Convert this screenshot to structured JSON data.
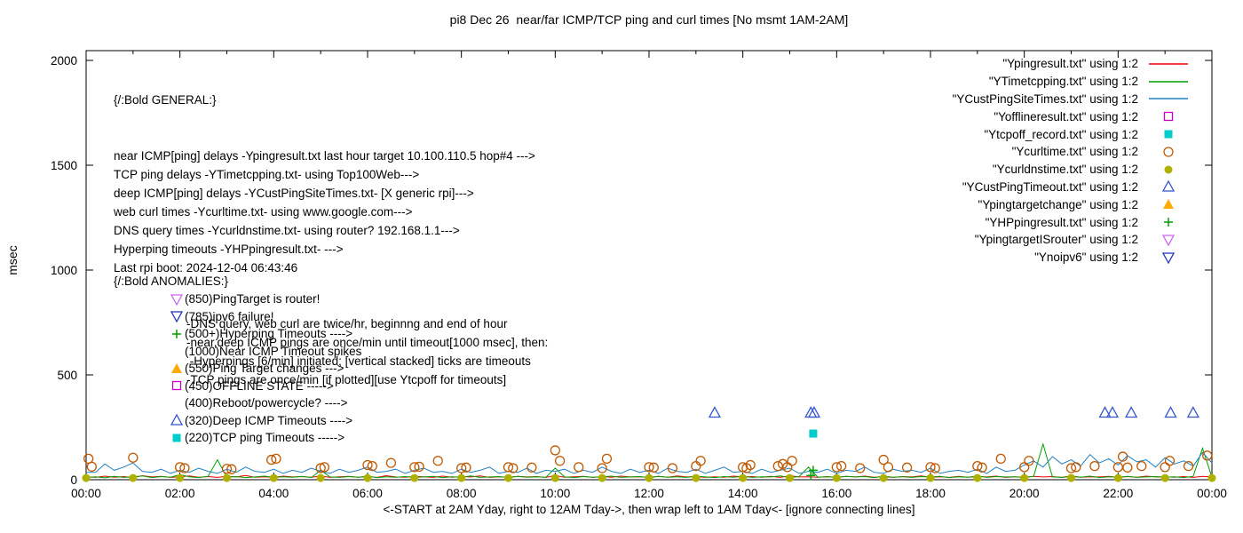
{
  "title": "pi8 Dec 26  near/far ICMP/TCP ping and curl times [No msmt 1AM-2AM]",
  "ylabel": "msec",
  "xlabel": "<-START at 2AM Yday, right to 12AM Tday->, then wrap left to 1AM Tday<- [ignore connecting lines]",
  "general_block": {
    "heading": "{/:Bold GENERAL:}",
    "lines": [
      "near ICMP[ping] delays -Ypingresult.txt last hour target 10.100.110.5 hop#4 --->",
      "TCP ping delays -YTimetcpping.txt- using Top100Web--->",
      "deep ICMP[ping] delays -YCustPingSiteTimes.txt- [X generic rpi]--->",
      "web curl times -Ycurltime.txt- using www.google.com--->",
      "DNS query times -Ycurldnstime.txt- using router? 192.168.1.1--->",
      "Hyperping timeouts -YHPpingresult.txt- --->",
      "Last rpi boot: 2024-12-04 06:43:46"
    ],
    "notes": [
      "-DNS query, web curl are twice/hr, beginnng and end of hour",
      "-near,deep ICMP pings are once/min until timeout[1000 msec], then:",
      " -Hyperpings [6/min] initiated; [vertical stacked] ticks are timeouts",
      "-TCP pings are once/min [if plotted][use Ytcpoff for timeouts]"
    ]
  },
  "anomalies_block": {
    "heading": "{/:Bold ANOMALIES:}",
    "items": [
      {
        "marker": "tri-down-open",
        "color": "#cc66ee",
        "text": "(850)PingTarget is router!"
      },
      {
        "marker": "tri-down-open",
        "color": "#2233bb",
        "text": "(785)ipv6 failure!"
      },
      {
        "marker": "plus",
        "color": "#00a000",
        "text": "(500+)Hyperping Timeouts ---->"
      },
      {
        "marker": null,
        "color": null,
        "text": "(1000)Near ICMP Timeout spikes"
      },
      {
        "marker": "tri-up-filled",
        "color": "#ffaa00",
        "text": "(550)Ping Target changes --->"
      },
      {
        "marker": "square-open",
        "color": "#cc00cc",
        "text": "(450)OFFLINE STATE ----->"
      },
      {
        "marker": null,
        "color": null,
        "text": "(400)Reboot/powercycle? ---->"
      },
      {
        "marker": "tri-up-open",
        "color": "#3355cc",
        "text": "(320)Deep ICMP Timeouts ---->"
      },
      {
        "marker": "square-filled",
        "color": "#00cccc",
        "text": "(220)TCP ping Timeouts ----->"
      }
    ]
  },
  "legend": [
    {
      "label": "\"Ypingresult.txt\" using 1:2",
      "marker": "line",
      "color": "#ee0000"
    },
    {
      "label": "\"YTimetcpping.txt\" using 1:2",
      "marker": "line",
      "color": "#00a000"
    },
    {
      "label": "\"YCustPingSiteTimes.txt\" using 1:2",
      "marker": "line",
      "color": "#2080c0"
    },
    {
      "label": "\"Yofflineresult.txt\" using 1:2",
      "marker": "square-open",
      "color": "#cc00cc"
    },
    {
      "label": "\"Ytcpoff_record.txt\" using 1:2",
      "marker": "square-filled",
      "color": "#00cccc"
    },
    {
      "label": "\"Ycurltime.txt\" using 1:2",
      "marker": "circle-open",
      "color": "#c05800"
    },
    {
      "label": "\"Ycurldnstime.txt\" using 1:2",
      "marker": "circle-filled",
      "color": "#b0b000"
    },
    {
      "label": "\"YCustPingTimeout.txt\" using 1:2",
      "marker": "tri-up-open",
      "color": "#3355cc"
    },
    {
      "label": "\"Ypingtargetchange\" using 1:2",
      "marker": "tri-up-filled",
      "color": "#ffaa00"
    },
    {
      "label": "\"YHPpingresult.txt\" using 1:2",
      "marker": "plus",
      "color": "#00a000"
    },
    {
      "label": "\"YpingtargetISrouter\" using 1:2",
      "marker": "tri-down-open",
      "color": "#cc66ee"
    },
    {
      "label": "\"Ynoipv6\" using 1:2",
      "marker": "tri-down-open",
      "color": "#2233bb"
    }
  ],
  "chart_data": {
    "type": "line",
    "title": "pi8 Dec 26  near/far ICMP/TCP ping and curl times [No msmt 1AM-2AM]",
    "xlabel": "<-START at 2AM Yday, right to 12AM Tday->, then wrap left to 1AM Tday<- [ignore connecting lines]",
    "ylabel": "msec",
    "axes": {
      "xlim": [
        0,
        24
      ],
      "ylim": [
        0,
        2000
      ],
      "y_ticks": [
        0,
        500,
        1000,
        1500,
        2000
      ],
      "x_tick_labels": [
        "00:00",
        "02:00",
        "04:00",
        "06:00",
        "08:00",
        "10:00",
        "12:00",
        "14:00",
        "16:00",
        "18:00",
        "20:00",
        "22:00",
        "00:00"
      ],
      "grid": false,
      "legend_position": "top-right"
    },
    "series": [
      {
        "name": "Ypingresult.txt",
        "type": "line",
        "color": "#ee0000",
        "values": [
          14,
          11,
          17,
          12,
          15,
          10,
          19,
          13,
          16,
          11,
          14,
          18,
          12,
          15,
          11,
          16,
          13,
          20,
          12,
          14,
          11,
          17,
          13,
          15,
          12,
          18,
          11,
          14,
          16,
          12,
          15,
          11,
          19,
          13,
          12,
          16,
          14,
          11,
          17,
          12,
          15,
          13,
          18,
          11,
          14,
          12,
          16,
          13,
          15,
          11,
          20,
          12,
          14,
          16,
          11,
          15,
          12,
          17,
          13,
          14,
          11,
          16,
          12,
          18,
          13,
          15,
          11,
          14,
          12,
          17,
          13,
          15,
          12,
          16,
          11,
          19,
          13,
          14,
          12,
          15,
          11,
          16,
          13,
          17,
          12,
          14,
          11,
          15,
          13,
          18,
          12,
          14,
          11,
          16,
          12,
          15,
          13,
          17,
          11,
          14,
          12,
          16,
          13,
          15,
          11,
          18,
          12,
          14,
          13,
          16,
          11,
          15,
          12,
          17,
          13,
          14,
          12,
          15,
          11,
          16,
          13
        ]
      },
      {
        "name": "YTimetcpping.txt",
        "type": "line",
        "color": "#00a000",
        "values": [
          10,
          14,
          9,
          16,
          11,
          13,
          18,
          10,
          15,
          12,
          24,
          14,
          10,
          16,
          95,
          12,
          15,
          10,
          13,
          17,
          11,
          14,
          12,
          16,
          10,
          45,
          13,
          11,
          15,
          12,
          17,
          10,
          14,
          12,
          15,
          11,
          13,
          16,
          10,
          14,
          12,
          18,
          11,
          13,
          15,
          10,
          16,
          12,
          14,
          11,
          55,
          13,
          10,
          15,
          12,
          14,
          17,
          11,
          13,
          15,
          10,
          16,
          12,
          14,
          11,
          17,
          13,
          10,
          15,
          12,
          16,
          11,
          14,
          13,
          18,
          10,
          15,
          60,
          12,
          14,
          11,
          16,
          13,
          15,
          10,
          17,
          12,
          14,
          11,
          15,
          13,
          16,
          10,
          14,
          12,
          18,
          11,
          15,
          13,
          14,
          10,
          16,
          170,
          13,
          11,
          15,
          12,
          17,
          10,
          14,
          12,
          16,
          11,
          13,
          15,
          12,
          14,
          10,
          16,
          150,
          12
        ]
      },
      {
        "name": "YCustPingSiteTimes.txt",
        "type": "line",
        "color": "#2080c0",
        "values": [
          35,
          35,
          75,
          45,
          60,
          80,
          40,
          35,
          50,
          30,
          45,
          35,
          55,
          40,
          30,
          50,
          35,
          60,
          40,
          35,
          50,
          30,
          45,
          35,
          55,
          40,
          30,
          50,
          35,
          45,
          60,
          35,
          40,
          50,
          30,
          45,
          55,
          35,
          40,
          30,
          50,
          35,
          45,
          60,
          30,
          40,
          35,
          55,
          30,
          45,
          40,
          50,
          30,
          45,
          35,
          60,
          40,
          30,
          50,
          35,
          45,
          30,
          55,
          40,
          35,
          50,
          30,
          45,
          60,
          35,
          40,
          30,
          50,
          35,
          45,
          55,
          30,
          40,
          35,
          50,
          30,
          45,
          40,
          60,
          35,
          30,
          50,
          40,
          45,
          35,
          55,
          30,
          40,
          45,
          35,
          50,
          30,
          60,
          40,
          45,
          70,
          90,
          60,
          110,
          75,
          95,
          65,
          120,
          80,
          100,
          70,
          115,
          85,
          95,
          60,
          105,
          75,
          90,
          65,
          130,
          80
        ]
      },
      {
        "name": "Ycurltime.txt",
        "type": "points",
        "marker": "circle-open",
        "color": "#c05800",
        "points": [
          [
            0.05,
            100
          ],
          [
            0.12,
            62
          ],
          [
            1.0,
            105
          ],
          [
            2.0,
            60
          ],
          [
            2.1,
            55
          ],
          [
            3.0,
            52
          ],
          [
            3.1,
            50
          ],
          [
            3.95,
            95
          ],
          [
            4.05,
            100
          ],
          [
            5.0,
            55
          ],
          [
            5.08,
            60
          ],
          [
            6.0,
            70
          ],
          [
            6.1,
            65
          ],
          [
            6.5,
            80
          ],
          [
            7.0,
            60
          ],
          [
            7.1,
            62
          ],
          [
            7.5,
            90
          ],
          [
            8.0,
            55
          ],
          [
            8.1,
            58
          ],
          [
            9.0,
            60
          ],
          [
            9.1,
            55
          ],
          [
            9.5,
            58
          ],
          [
            10.0,
            140
          ],
          [
            10.1,
            90
          ],
          [
            10.5,
            60
          ],
          [
            11.0,
            55
          ],
          [
            11.1,
            100
          ],
          [
            12.0,
            60
          ],
          [
            12.1,
            58
          ],
          [
            12.5,
            55
          ],
          [
            13.0,
            65
          ],
          [
            13.1,
            90
          ],
          [
            14.0,
            60
          ],
          [
            14.08,
            55
          ],
          [
            14.16,
            70
          ],
          [
            14.75,
            65
          ],
          [
            14.85,
            75
          ],
          [
            14.95,
            60
          ],
          [
            15.05,
            90
          ],
          [
            16.0,
            60
          ],
          [
            16.1,
            65
          ],
          [
            16.5,
            55
          ],
          [
            17.0,
            95
          ],
          [
            17.1,
            60
          ],
          [
            17.5,
            58
          ],
          [
            18.0,
            60
          ],
          [
            18.1,
            55
          ],
          [
            19.0,
            65
          ],
          [
            19.1,
            58
          ],
          [
            19.5,
            100
          ],
          [
            20.0,
            60
          ],
          [
            20.1,
            90
          ],
          [
            21.0,
            55
          ],
          [
            21.1,
            60
          ],
          [
            21.5,
            65
          ],
          [
            22.0,
            60
          ],
          [
            22.1,
            110
          ],
          [
            22.2,
            58
          ],
          [
            22.5,
            65
          ],
          [
            23.0,
            60
          ],
          [
            23.1,
            90
          ],
          [
            23.5,
            65
          ],
          [
            23.9,
            115
          ]
        ]
      },
      {
        "name": "Ycurldnstime.txt",
        "type": "points",
        "marker": "circle-filled",
        "color": "#b0b000",
        "points": [
          [
            0,
            8
          ],
          [
            1,
            8
          ],
          [
            2,
            8
          ],
          [
            3,
            8
          ],
          [
            4,
            8
          ],
          [
            5,
            8
          ],
          [
            6,
            8
          ],
          [
            7,
            8
          ],
          [
            8,
            8
          ],
          [
            9,
            8
          ],
          [
            10,
            8
          ],
          [
            11,
            8
          ],
          [
            12,
            8
          ],
          [
            13,
            8
          ],
          [
            14,
            8
          ],
          [
            15,
            8
          ],
          [
            16,
            8
          ],
          [
            17,
            8
          ],
          [
            18,
            8
          ],
          [
            19,
            8
          ],
          [
            20,
            8
          ],
          [
            21,
            8
          ],
          [
            22,
            8
          ],
          [
            23,
            8
          ],
          [
            24,
            8
          ]
        ]
      },
      {
        "name": "YCustPingTimeout.txt",
        "type": "points",
        "marker": "tri-up-open",
        "color": "#3355cc",
        "points": [
          [
            13.4,
            320
          ],
          [
            15.45,
            320
          ],
          [
            15.52,
            320
          ],
          [
            21.72,
            320
          ],
          [
            21.88,
            320
          ],
          [
            22.28,
            320
          ],
          [
            23.12,
            320
          ],
          [
            23.6,
            320
          ]
        ]
      },
      {
        "name": "Ytcpoff_record.txt",
        "type": "points",
        "marker": "square-filled",
        "color": "#00cccc",
        "points": [
          [
            15.5,
            220
          ]
        ]
      },
      {
        "name": "YHPpingresult.txt",
        "type": "points",
        "marker": "plus",
        "color": "#00a000",
        "points": [
          [
            15.45,
            20
          ],
          [
            15.5,
            45
          ]
        ]
      },
      {
        "name": "Yofflineresult.txt",
        "type": "points",
        "marker": "square-open",
        "color": "#cc00cc",
        "points": []
      },
      {
        "name": "Ypingtargetchange",
        "type": "points",
        "marker": "tri-up-filled",
        "color": "#ffaa00",
        "points": []
      },
      {
        "name": "YpingtargetISrouter",
        "type": "points",
        "marker": "tri-down-open",
        "color": "#cc66ee",
        "points": []
      },
      {
        "name": "Ynoipv6",
        "type": "points",
        "marker": "tri-down-open",
        "color": "#2233bb",
        "points": []
      }
    ]
  }
}
